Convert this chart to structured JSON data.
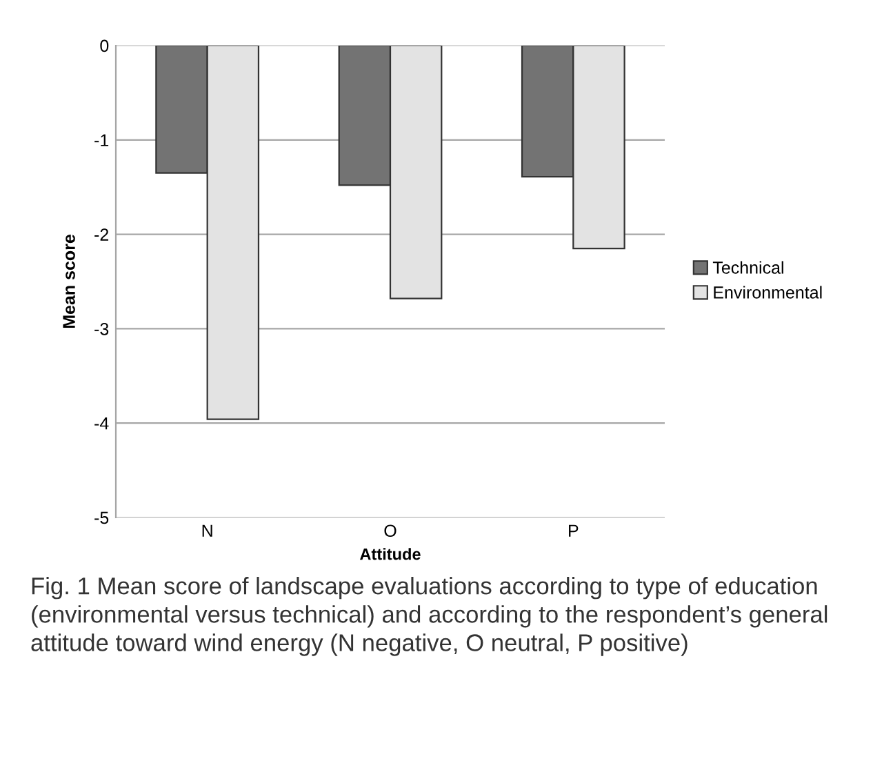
{
  "chart_data": {
    "type": "bar",
    "xlabel": "Attitude",
    "ylabel": "Mean score",
    "categories": [
      "N",
      "O",
      "P"
    ],
    "series": [
      {
        "name": "Technical",
        "color": "#737373",
        "values": [
          -1.35,
          -1.48,
          -1.39
        ]
      },
      {
        "name": "Environmental",
        "color": "#e3e3e3",
        "values": [
          -3.96,
          -2.68,
          -2.15
        ]
      }
    ],
    "ylim": [
      -5,
      0
    ],
    "yticks": [
      -5,
      -4,
      -3,
      -2,
      -1,
      0
    ],
    "grid": "y",
    "legend": "right",
    "annotations": [
      "Fig. 1 Mean score of landscape evaluations according to type of education (environmental versus technical) and according to the respondent’s general attitude toward wind energy (N negative, O neutral, P positive)"
    ]
  }
}
